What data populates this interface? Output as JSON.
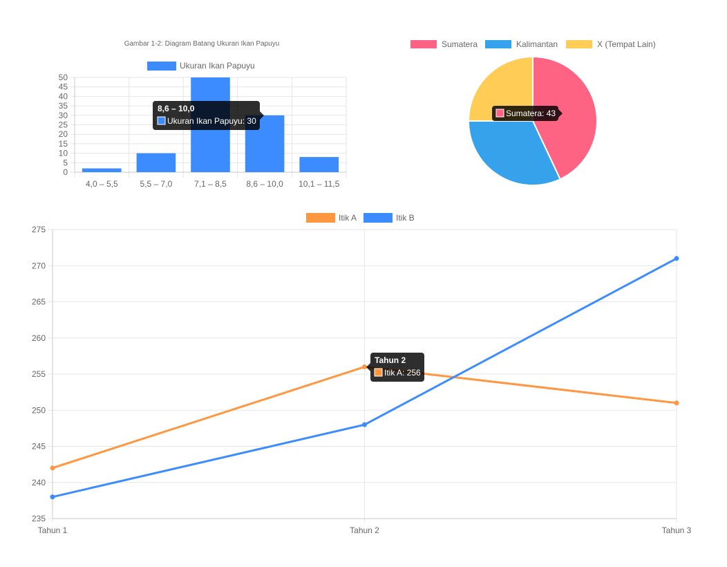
{
  "chart_data": [
    {
      "id": "bar",
      "type": "bar",
      "title": "Gambar 1-2: Diagram Batang Ukuran Ikan Papuyu",
      "categories": [
        "4,0 – 5,5",
        "5,5 – 7,0",
        "7,1 – 8,5",
        "8,6 – 10,0",
        "10,1 – 11,5"
      ],
      "series": [
        {
          "name": "Ukuran Ikan Papuyu",
          "values": [
            2,
            10,
            50,
            30,
            8
          ],
          "color": "#3d8cff"
        }
      ],
      "ylim": [
        0,
        50
      ],
      "yticks": [
        0,
        5,
        10,
        15,
        20,
        25,
        30,
        35,
        40,
        45,
        50
      ],
      "grid": true,
      "legend_position": "top",
      "tooltip": {
        "title": "8,6 – 10,0",
        "label": "Ukuran Ikan Papuyu: 30"
      }
    },
    {
      "id": "pie",
      "type": "pie",
      "labels": [
        "Sumatera",
        "Kalimantan",
        "X (Tempat Lain)"
      ],
      "values": [
        43,
        32,
        25
      ],
      "colors": [
        "#ff6384",
        "#36a2eb",
        "#ffcd56"
      ],
      "legend_position": "top",
      "tooltip": {
        "label": "Sumatera: 43"
      }
    },
    {
      "id": "line",
      "type": "line",
      "x": [
        "Tahun 1",
        "Tahun 2",
        "Tahun 3"
      ],
      "series": [
        {
          "name": "Itik A",
          "values": [
            242,
            256,
            251
          ],
          "color": "#ff9640"
        },
        {
          "name": "Itik B",
          "values": [
            238,
            248,
            271
          ],
          "color": "#3d8cff"
        }
      ],
      "ylim": [
        235,
        275
      ],
      "yticks": [
        235,
        240,
        245,
        250,
        255,
        260,
        265,
        270,
        275
      ],
      "grid": true,
      "legend_position": "top",
      "tooltip": {
        "title": "Tahun 2",
        "label": "Itik A: 256"
      }
    }
  ]
}
